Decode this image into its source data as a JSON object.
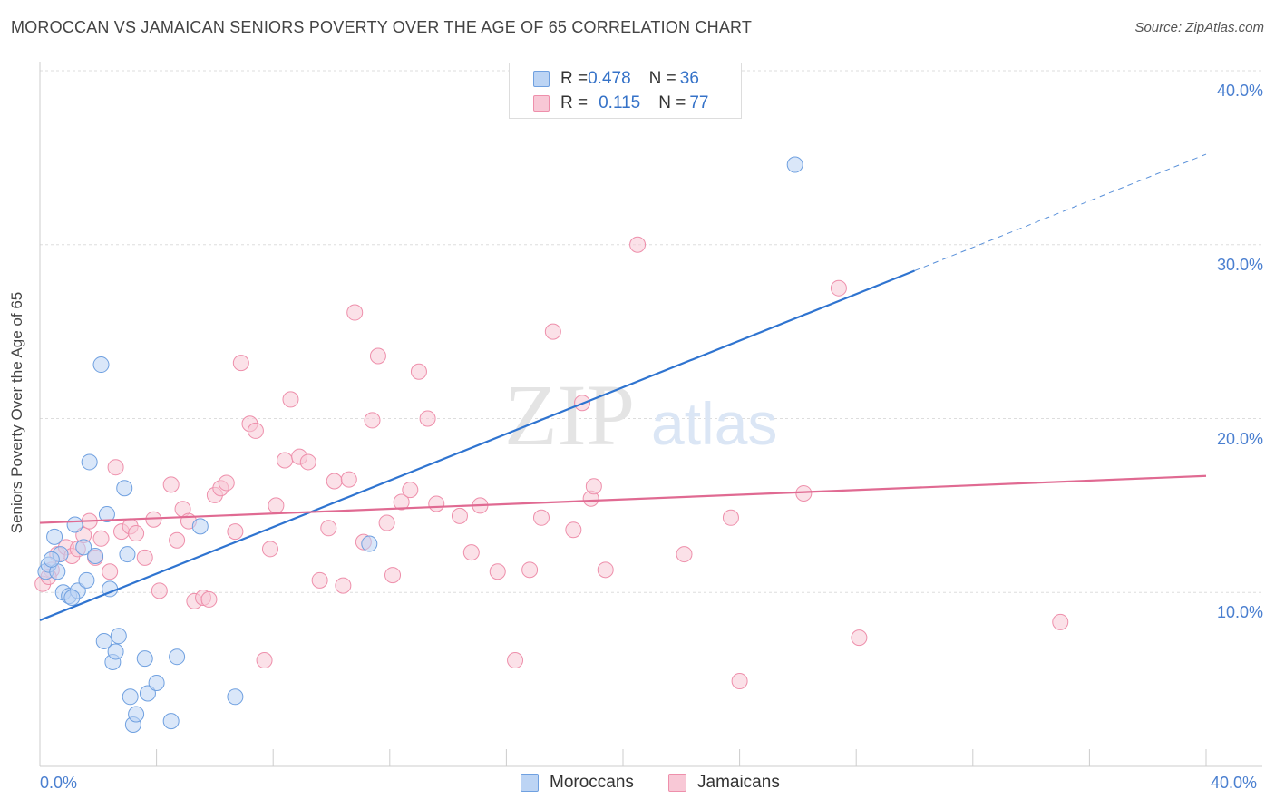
{
  "title": "MOROCCAN VS JAMAICAN SENIORS POVERTY OVER THE AGE OF 65 CORRELATION CHART",
  "source": "Source: ZipAtlas.com",
  "watermark": {
    "zip": "ZIP",
    "atlas": "atlas"
  },
  "legend_top": {
    "rows": [
      {
        "r_label": "R = ",
        "r_value": "0.478",
        "n_label": "N = ",
        "n_value": "36",
        "color": "#a9c8f2"
      },
      {
        "r_label": "R = ",
        "r_value": "0.115",
        "n_label": "N = ",
        "n_value": "77",
        "color": "#f5b8cb"
      }
    ]
  },
  "chart_data": {
    "type": "scatter",
    "title": "MOROCCAN VS JAMAICAN SENIORS POVERTY OVER THE AGE OF 65 CORRELATION CHART",
    "xlabel": "",
    "ylabel": "Seniors Poverty Over the Age of 65",
    "xlim": [
      0,
      40
    ],
    "ylim": [
      0,
      40
    ],
    "x_tick_labels": [
      "0.0%",
      "40.0%"
    ],
    "y_ticks": [
      10,
      20,
      30,
      40
    ],
    "y_tick_labels": [
      "10.0%",
      "20.0%",
      "30.0%",
      "40.0%"
    ],
    "grid": true,
    "legend_position": "bottom",
    "series": [
      {
        "name": "Moroccans",
        "color": "#6fa0e0",
        "fill": "#bcd4f4",
        "trend": {
          "x0": 0,
          "y0": 8.4,
          "x1": 30,
          "y1": 28.5,
          "dashed_to_x": 40,
          "dashed_to_y": 35.2,
          "color": "#2f74d0"
        },
        "points": [
          [
            0.2,
            11.2
          ],
          [
            0.3,
            11.6
          ],
          [
            0.5,
            13.2
          ],
          [
            0.6,
            11.2
          ],
          [
            0.7,
            12.2
          ],
          [
            0.8,
            10.0
          ],
          [
            1.0,
            9.8
          ],
          [
            1.2,
            13.9
          ],
          [
            1.3,
            10.1
          ],
          [
            1.5,
            12.6
          ],
          [
            1.6,
            10.7
          ],
          [
            1.7,
            17.5
          ],
          [
            1.9,
            12.1
          ],
          [
            2.1,
            23.1
          ],
          [
            2.2,
            7.2
          ],
          [
            2.3,
            14.5
          ],
          [
            2.4,
            10.2
          ],
          [
            2.5,
            6.0
          ],
          [
            2.6,
            6.6
          ],
          [
            2.7,
            7.5
          ],
          [
            2.9,
            16.0
          ],
          [
            3.0,
            12.2
          ],
          [
            3.1,
            4.0
          ],
          [
            3.2,
            2.4
          ],
          [
            3.3,
            3.0
          ],
          [
            3.6,
            6.2
          ],
          [
            3.7,
            4.2
          ],
          [
            4.0,
            4.8
          ],
          [
            4.5,
            2.6
          ],
          [
            4.7,
            6.3
          ],
          [
            5.5,
            13.8
          ],
          [
            6.7,
            4.0
          ],
          [
            11.3,
            12.8
          ],
          [
            25.9,
            34.6
          ],
          [
            0.4,
            11.9
          ],
          [
            1.1,
            9.7
          ]
        ]
      },
      {
        "name": "Jamaicans",
        "color": "#ee8fab",
        "fill": "#f8c8d6",
        "trend": {
          "x0": 0,
          "y0": 14.0,
          "x1": 40,
          "y1": 16.7,
          "color": "#e06a92"
        },
        "points": [
          [
            0.1,
            10.5
          ],
          [
            0.4,
            11.3
          ],
          [
            0.6,
            12.2
          ],
          [
            0.9,
            12.6
          ],
          [
            1.1,
            12.1
          ],
          [
            1.3,
            12.5
          ],
          [
            1.5,
            13.3
          ],
          [
            1.7,
            14.1
          ],
          [
            1.9,
            12.0
          ],
          [
            2.1,
            13.1
          ],
          [
            2.4,
            11.2
          ],
          [
            2.6,
            17.2
          ],
          [
            2.8,
            13.5
          ],
          [
            3.1,
            13.8
          ],
          [
            3.3,
            13.4
          ],
          [
            3.6,
            12.0
          ],
          [
            3.9,
            14.2
          ],
          [
            4.1,
            10.1
          ],
          [
            4.5,
            16.2
          ],
          [
            4.7,
            13.0
          ],
          [
            4.9,
            14.8
          ],
          [
            5.1,
            14.1
          ],
          [
            5.3,
            9.5
          ],
          [
            5.6,
            9.7
          ],
          [
            5.8,
            9.6
          ],
          [
            6.0,
            15.6
          ],
          [
            6.2,
            16.0
          ],
          [
            6.4,
            16.3
          ],
          [
            6.7,
            13.5
          ],
          [
            6.9,
            23.2
          ],
          [
            7.2,
            19.7
          ],
          [
            7.4,
            19.3
          ],
          [
            7.7,
            6.1
          ],
          [
            7.9,
            12.5
          ],
          [
            8.1,
            15.0
          ],
          [
            8.4,
            17.6
          ],
          [
            8.6,
            21.1
          ],
          [
            8.9,
            17.8
          ],
          [
            9.2,
            17.5
          ],
          [
            9.6,
            10.7
          ],
          [
            9.9,
            13.7
          ],
          [
            10.1,
            16.4
          ],
          [
            10.4,
            10.4
          ],
          [
            10.6,
            16.5
          ],
          [
            10.8,
            26.1
          ],
          [
            11.1,
            12.9
          ],
          [
            11.4,
            19.9
          ],
          [
            11.6,
            23.6
          ],
          [
            11.9,
            14.0
          ],
          [
            12.1,
            11.0
          ],
          [
            12.4,
            15.2
          ],
          [
            12.7,
            15.9
          ],
          [
            13.0,
            22.7
          ],
          [
            13.3,
            20.0
          ],
          [
            13.6,
            15.1
          ],
          [
            14.4,
            14.4
          ],
          [
            14.8,
            12.3
          ],
          [
            15.1,
            15.0
          ],
          [
            15.7,
            11.2
          ],
          [
            16.3,
            6.1
          ],
          [
            16.8,
            11.3
          ],
          [
            17.2,
            14.3
          ],
          [
            17.6,
            25.0
          ],
          [
            18.3,
            13.6
          ],
          [
            18.6,
            20.9
          ],
          [
            18.9,
            15.4
          ],
          [
            19.0,
            16.1
          ],
          [
            19.4,
            11.3
          ],
          [
            20.5,
            30.0
          ],
          [
            22.1,
            12.2
          ],
          [
            23.7,
            14.3
          ],
          [
            24.0,
            4.9
          ],
          [
            26.2,
            15.7
          ],
          [
            27.4,
            27.5
          ],
          [
            28.1,
            7.4
          ],
          [
            35.0,
            8.3
          ],
          [
            0.3,
            10.9
          ]
        ]
      }
    ]
  },
  "legend_bottom": [
    {
      "label": "Moroccans",
      "color": "#bcd4f4",
      "border": "#6fa0e0"
    },
    {
      "label": "Jamaicans",
      "color": "#f8c8d6",
      "border": "#ee8fab"
    }
  ]
}
